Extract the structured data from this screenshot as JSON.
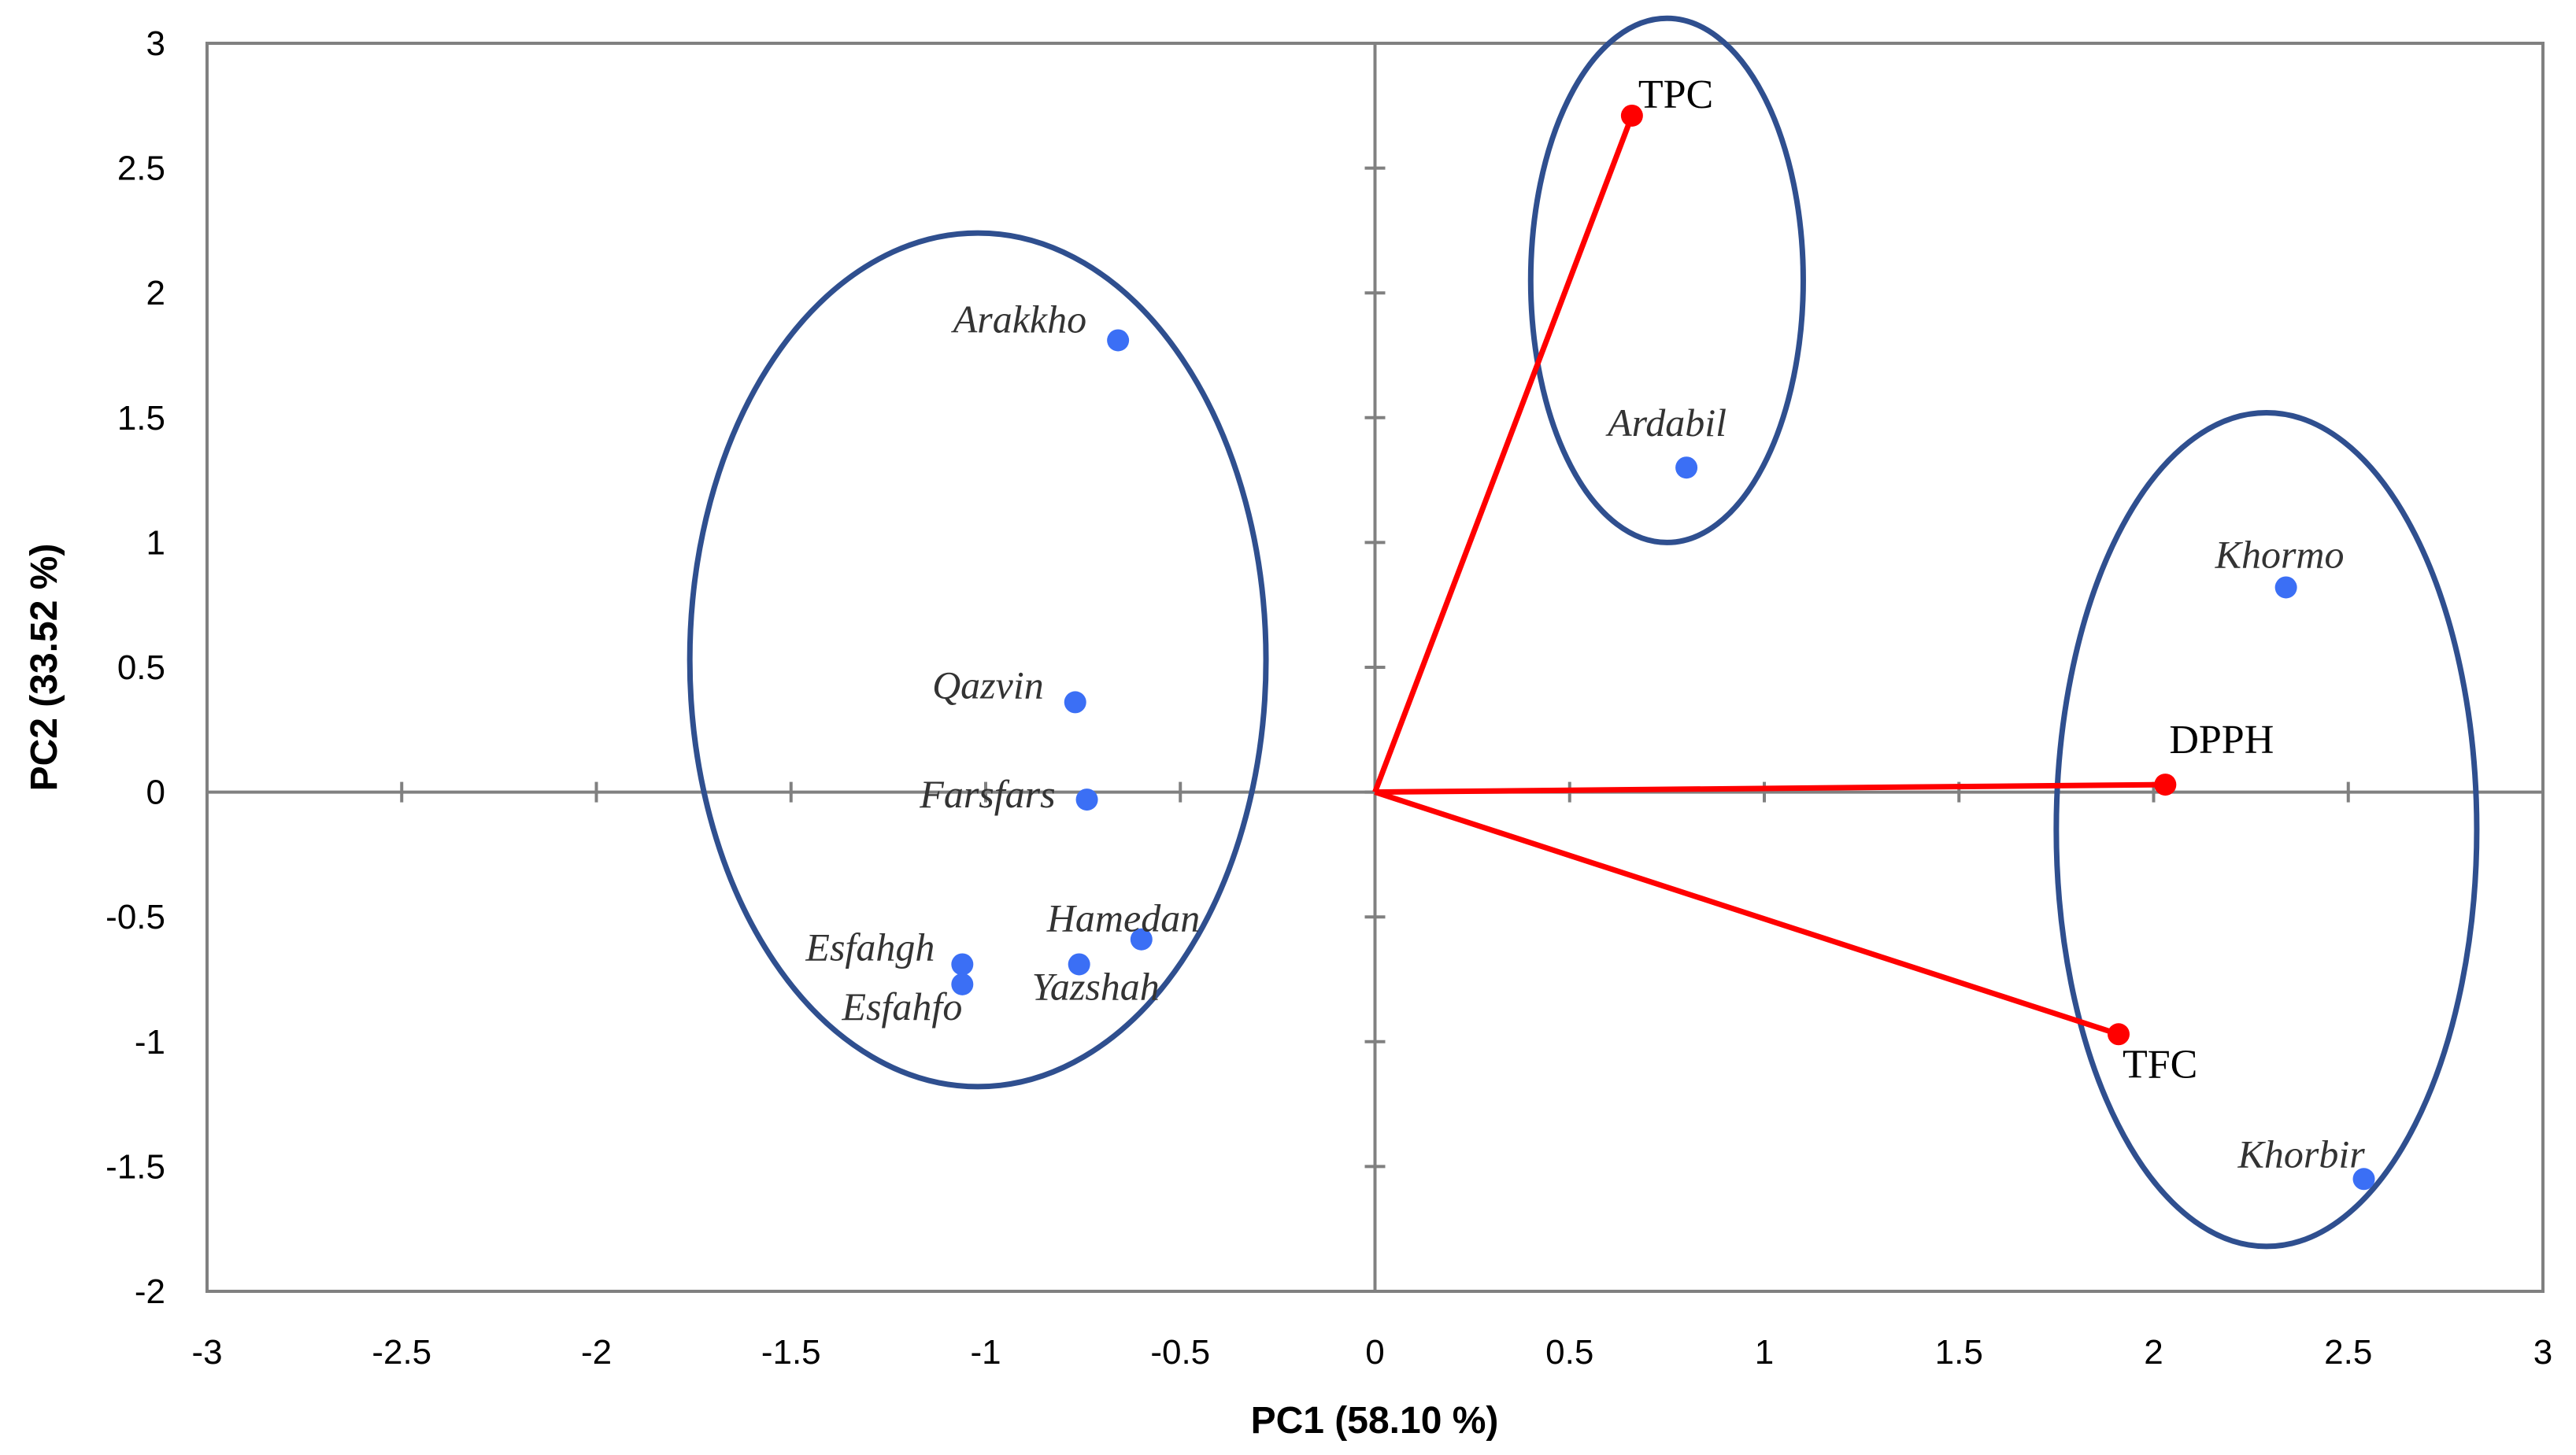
{
  "chart_data": {
    "type": "scatter",
    "title": "",
    "xlabel": "PC1 (58.10 %)",
    "ylabel": "PC2 (33.52 %)",
    "xlim": [
      -3,
      3
    ],
    "ylim": [
      -2,
      3
    ],
    "xticks": [
      -3,
      -2.5,
      -2,
      -1.5,
      -1,
      -0.5,
      0,
      0.5,
      1,
      1.5,
      2,
      2.5,
      3
    ],
    "yticks": [
      -2,
      -1.5,
      -1,
      -0.5,
      0,
      0.5,
      1,
      1.5,
      2,
      2.5,
      3
    ],
    "xtick_labels": [
      "-3",
      "-2.5",
      "-2",
      "-1.5",
      "-1",
      "-0.5",
      "0",
      "0.5",
      "1",
      "1.5",
      "2",
      "2.5",
      "3"
    ],
    "ytick_labels": [
      "-2",
      "-1.5",
      "-1",
      "-0.5",
      "0",
      "0.5",
      "1",
      "1.5",
      "2",
      "2.5",
      "3"
    ],
    "samples": [
      {
        "name": "Arakkho",
        "x": -0.66,
        "y": 1.81
      },
      {
        "name": "Qazvin",
        "x": -0.77,
        "y": 0.36
      },
      {
        "name": "Farsfars",
        "x": -0.74,
        "y": -0.03
      },
      {
        "name": "Hamedan",
        "x": -0.6,
        "y": -0.59
      },
      {
        "name": "Yazshah",
        "x": -0.76,
        "y": -0.69
      },
      {
        "name": "Esfahgh",
        "x": -1.06,
        "y": -0.69
      },
      {
        "name": "Esfahfo",
        "x": -1.06,
        "y": -0.77
      },
      {
        "name": "Ardabil",
        "x": 0.8,
        "y": 1.3
      },
      {
        "name": "Khormo",
        "x": 2.34,
        "y": 0.82
      },
      {
        "name": "Khorbir",
        "x": 2.54,
        "y": -1.55
      }
    ],
    "variables": [
      {
        "name": "TPC",
        "x": 0.66,
        "y": 2.71
      },
      {
        "name": "DPPH",
        "x": 2.03,
        "y": 0.03
      },
      {
        "name": "TFC",
        "x": 1.91,
        "y": -0.97
      }
    ],
    "groups": [
      {
        "cx": -1.02,
        "cy": 0.53,
        "rx": 0.74,
        "ry": 1.71
      },
      {
        "cx": 0.75,
        "cy": 2.05,
        "rx": 0.35,
        "ry": 1.05
      },
      {
        "cx": 2.29,
        "cy": -0.15,
        "rx": 0.54,
        "ry": 1.67
      }
    ],
    "colors": {
      "samples": "#3b6ff5",
      "variables": "#ff0000",
      "ellipses": "#2f4f8f",
      "axes": "#808080"
    }
  }
}
